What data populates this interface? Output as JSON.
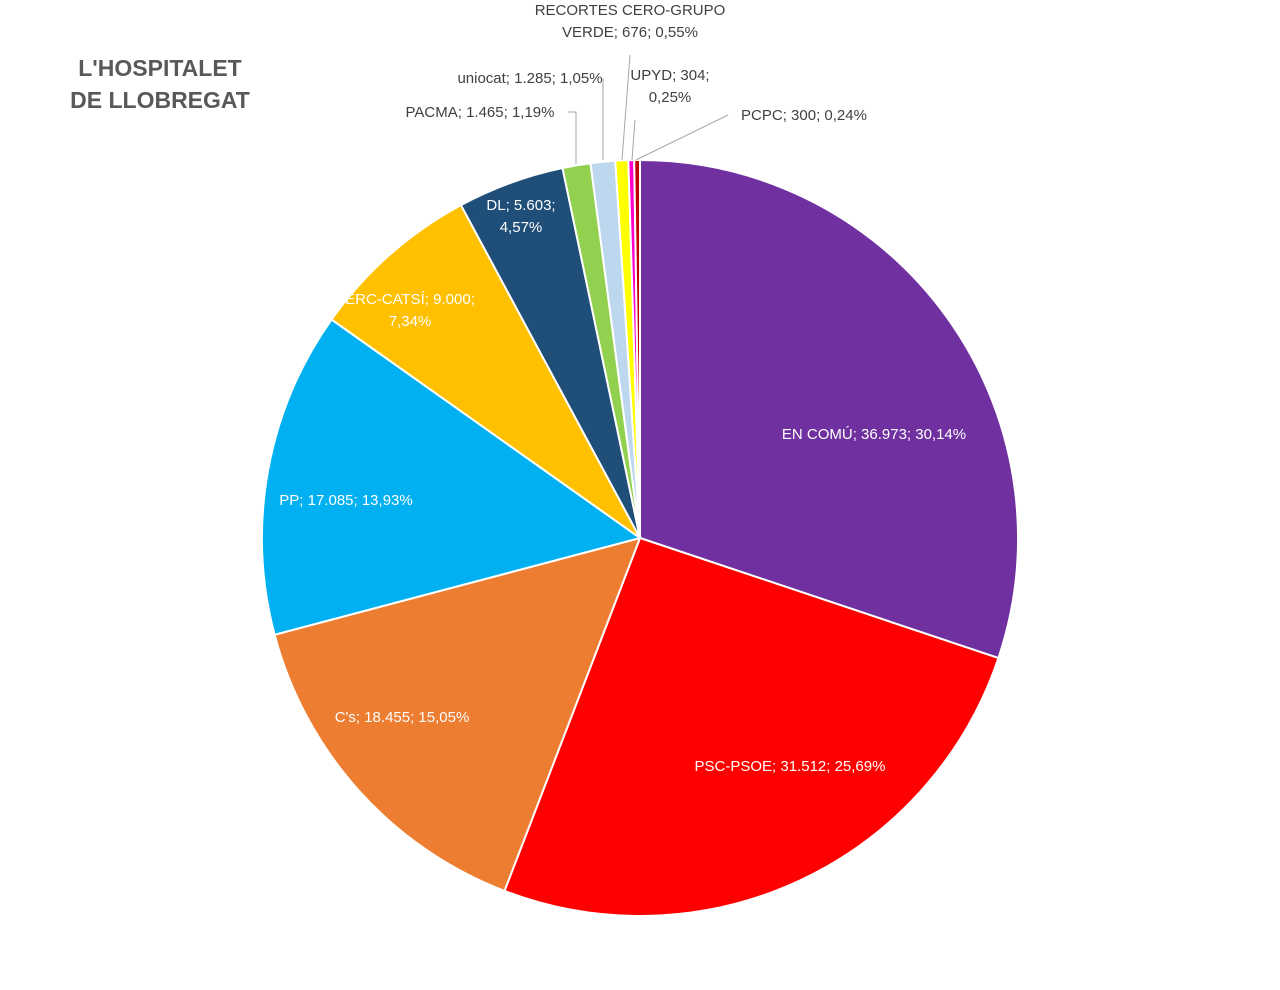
{
  "chart_data": {
    "type": "pie",
    "title": [
      "L'HOSPITALET",
      "DE LLOBREGAT"
    ],
    "slices": [
      {
        "name": "EN COMÚ",
        "value": 36973,
        "value_label": "36.973",
        "percent": 30.14,
        "percent_label": "30,14%",
        "color": "#7030A0",
        "label_lines": [
          "EN COMÚ; 36.973; 30,14%"
        ],
        "label_color": "#ffffff"
      },
      {
        "name": "PSC-PSOE",
        "value": 31512,
        "value_label": "31.512",
        "percent": 25.69,
        "percent_label": "25,69%",
        "color": "#FF0000",
        "label_lines": [
          "PSC-PSOE; 31.512; 25,69%"
        ],
        "label_color": "#ffffff"
      },
      {
        "name": "C's",
        "value": 18455,
        "value_label": "18.455",
        "percent": 15.05,
        "percent_label": "15,05%",
        "color": "#ED7D31",
        "label_lines": [
          "C's; 18.455; 15,05%"
        ],
        "label_color": "#ffffff"
      },
      {
        "name": "PP",
        "value": 17085,
        "value_label": "17.085",
        "percent": 13.93,
        "percent_label": "13,93%",
        "color": "#00B0F0",
        "label_lines": [
          "PP; 17.085; 13,93%"
        ],
        "label_color": "#ffffff"
      },
      {
        "name": "ERC-CATSÍ",
        "value": 9000,
        "value_label": "9.000",
        "percent": 7.34,
        "percent_label": "7,34%",
        "color": "#FFC000",
        "label_lines": [
          "ERC-CATSÍ; 9.000;",
          "7,34%"
        ],
        "label_color": "#ffffff"
      },
      {
        "name": "DL",
        "value": 5603,
        "value_label": "5.603",
        "percent": 4.57,
        "percent_label": "4,57%",
        "color": "#1F4E79",
        "label_lines": [
          "DL; 5.603;",
          "4,57%"
        ],
        "label_color": "#ffffff"
      },
      {
        "name": "PACMA",
        "value": 1465,
        "value_label": "1.465",
        "percent": 1.19,
        "percent_label": "1,19%",
        "color": "#92D050",
        "label_lines": [
          "PACMA; 1.465; 1,19%"
        ],
        "label_color": "#404040"
      },
      {
        "name": "uniocat",
        "value": 1285,
        "value_label": "1.285",
        "percent": 1.05,
        "percent_label": "1,05%",
        "color": "#BDD7EE",
        "label_lines": [
          "uniocat; 1.285; 1,05%"
        ],
        "label_color": "#404040"
      },
      {
        "name": "RECORTES CERO-GRUPO VERDE",
        "value": 676,
        "value_label": "676",
        "percent": 0.55,
        "percent_label": "0,55%",
        "color": "#FFFF00",
        "label_lines": [
          "RECORTES CERO-GRUPO",
          "VERDE; 676; 0,55%"
        ],
        "label_color": "#404040"
      },
      {
        "name": "UPYD",
        "value": 304,
        "value_label": "304",
        "percent": 0.25,
        "percent_label": "0,25%",
        "color": "#FF00CC",
        "label_lines": [
          "UPYD; 304;",
          "0,25%"
        ],
        "label_color": "#404040"
      },
      {
        "name": "PCPC",
        "value": 300,
        "value_label": "300",
        "percent": 0.24,
        "percent_label": "0,24%",
        "color": "#C00000",
        "label_lines": [
          "PCPC; 300;  0,24%"
        ],
        "label_color": "#404040"
      }
    ],
    "legend": "none"
  }
}
